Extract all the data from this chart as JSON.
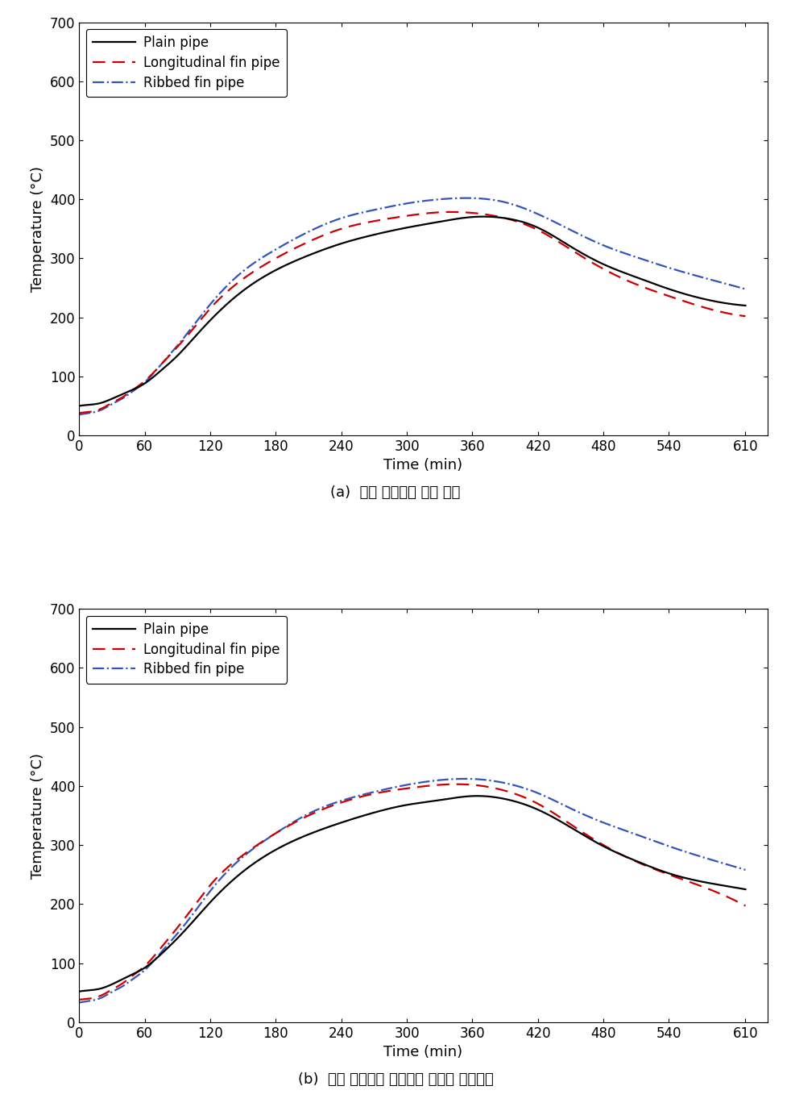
{
  "time": [
    0,
    10,
    20,
    30,
    40,
    50,
    60,
    75,
    90,
    105,
    120,
    150,
    180,
    210,
    240,
    270,
    300,
    330,
    360,
    390,
    420,
    450,
    480,
    510,
    540,
    570,
    610
  ],
  "chart_a": {
    "plain": [
      50,
      52,
      55,
      62,
      70,
      78,
      88,
      110,
      135,
      165,
      195,
      245,
      280,
      305,
      325,
      340,
      352,
      362,
      370,
      368,
      352,
      320,
      290,
      268,
      248,
      232,
      220
    ],
    "longitudinal": [
      38,
      40,
      45,
      55,
      65,
      78,
      92,
      120,
      150,
      182,
      215,
      265,
      300,
      328,
      350,
      363,
      372,
      378,
      377,
      368,
      348,
      315,
      282,
      256,
      236,
      218,
      202
    ],
    "ribbed": [
      35,
      38,
      43,
      53,
      63,
      76,
      90,
      120,
      152,
      187,
      222,
      278,
      315,
      345,
      368,
      382,
      393,
      400,
      402,
      395,
      375,
      348,
      322,
      302,
      284,
      268,
      248
    ]
  },
  "chart_b": {
    "plain": [
      52,
      54,
      57,
      64,
      73,
      82,
      92,
      115,
      142,
      172,
      203,
      255,
      292,
      318,
      338,
      355,
      368,
      376,
      383,
      378,
      360,
      330,
      298,
      273,
      252,
      238,
      225
    ],
    "longitudinal": [
      38,
      40,
      45,
      55,
      66,
      80,
      95,
      126,
      160,
      196,
      232,
      283,
      320,
      350,
      372,
      387,
      396,
      402,
      402,
      392,
      370,
      335,
      300,
      272,
      250,
      230,
      197
    ],
    "ribbed": [
      33,
      36,
      41,
      51,
      61,
      74,
      88,
      118,
      150,
      185,
      222,
      280,
      320,
      353,
      375,
      390,
      402,
      410,
      412,
      405,
      388,
      362,
      338,
      318,
      298,
      280,
      258
    ]
  },
  "plain_color": "#000000",
  "longitudinal_color": "#cc0000",
  "ribbed_color": "#3355bb",
  "plain_label": "Plain pipe",
  "longitudinal_label": "Longitudinal fin pipe",
  "ribbed_label": "Ribbed fin pipe",
  "xlabel": "Time (min)",
  "ylabel": "Temperature (°C)",
  "xlim": [
    0,
    630
  ],
  "ylim": [
    0,
    700
  ],
  "xticks": [
    0,
    60,
    120,
    180,
    240,
    300,
    360,
    420,
    480,
    540,
    610
  ],
  "yticks": [
    0,
    100,
    200,
    300,
    400,
    500,
    600,
    700
  ],
  "caption_a": "(a)  중앙 단면에서 표면 위치",
  "caption_b": "(b)  중앙 단면에서 중심부와 표면부 중간위치",
  "label_fontsize": 13,
  "tick_fontsize": 12,
  "legend_fontsize": 12,
  "caption_fontsize": 13
}
